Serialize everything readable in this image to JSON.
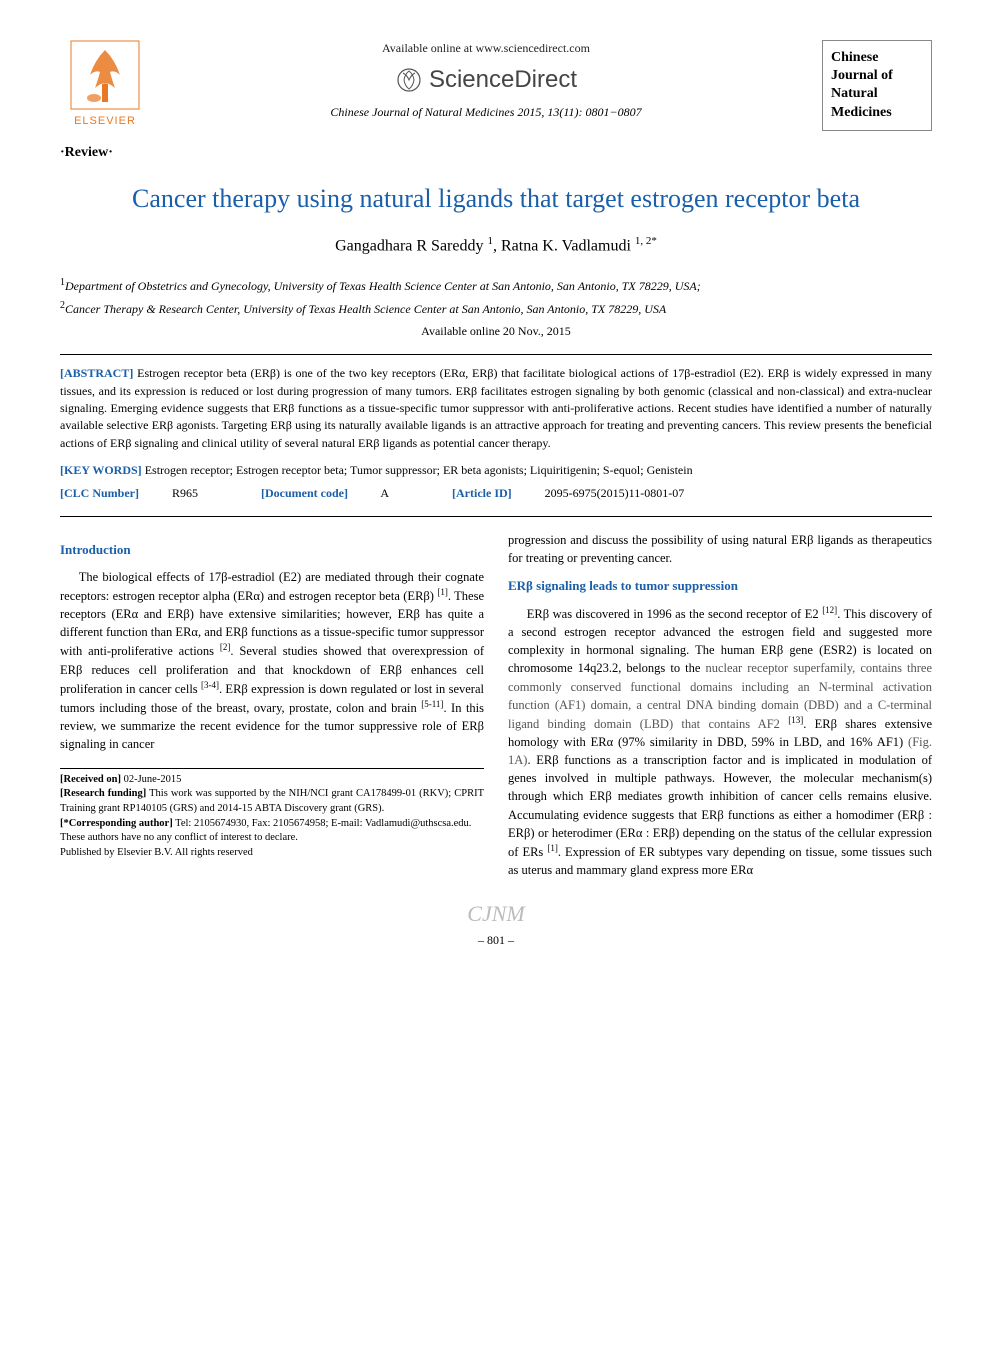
{
  "header": {
    "publisher_name": "ELSEVIER",
    "available_text": "Available online at www.sciencedirect.com",
    "sciencedirect_text": "ScienceDirect",
    "citation": "Chinese Journal of Natural Medicines 2015, 13(11): 0801−0807",
    "journal_box_lines": [
      "Chinese",
      "Journal of",
      "Natural",
      "Medicines"
    ]
  },
  "review_tag": "·Review·",
  "title": "Cancer therapy using natural ligands that target estrogen receptor beta",
  "authors_html": "Gangadhara R Sareddy <sup>1</sup>, Ratna K. Vadlamudi <sup>1, 2*</sup>",
  "affiliations": [
    "<sup>1</sup>Department of Obstetrics and Gynecology, University of Texas Health Science Center at San Antonio, San Antonio, TX 78229, USA;",
    "<sup>2</sup>Cancer Therapy & Research Center, University of Texas Health Science Center at San Antonio, San Antonio, TX 78229, USA"
  ],
  "available_date": "Available online 20 Nov., 2015",
  "abstract": {
    "label": "[ABSTRACT]",
    "text": "Estrogen receptor beta (ERβ) is one of the two key receptors (ERα, ERβ) that facilitate biological actions of 17β-estradiol (E2). ERβ is widely expressed in many tissues, and its expression is reduced or lost during progression of many tumors. ERβ facilitates estrogen signaling by both genomic (classical and non-classical) and extra-nuclear signaling. Emerging evidence suggests that ERβ functions as a tissue-specific tumor suppressor with anti-proliferative actions. Recent studies have identified a number of naturally available selective ERβ agonists. Targeting ERβ using its naturally available ligands is an attractive approach for treating and preventing cancers. This review presents the beneficial actions of ERβ signaling and clinical utility of several natural ERβ ligands as potential cancer therapy."
  },
  "keywords": {
    "label": "[KEY WORDS]",
    "text": "Estrogen receptor; Estrogen receptor beta; Tumor suppressor; ER beta agonists; Liquiritigenin; S-equol; Genistein"
  },
  "meta": {
    "clc_label": "[CLC Number]",
    "clc_value": "R965",
    "doc_label": "[Document code]",
    "doc_value": "A",
    "aid_label": "[Article ID]",
    "aid_value": "2095-6975(2015)11-0801-07"
  },
  "sections": {
    "intro_head": "Introduction",
    "intro_text": "The biological effects of 17β-estradiol (E2) are mediated through their cognate receptors: estrogen receptor alpha (ERα) and estrogen receptor beta (ERβ) <sup>[1]</sup>. These receptors (ERα and ERβ) have extensive similarities; however, ERβ has quite a different function than ERα, and ERβ functions as a tissue-specific tumor suppressor with anti-proliferative actions <sup>[2]</sup>. Several studies showed that overexpression of ERβ reduces cell proliferation and that knockdown of ERβ enhances cell proliferation in cancer cells <sup>[3-4]</sup>. ERβ expression is down regulated or lost in several tumors including those of the breast, ovary, prostate, colon and brain <sup>[5-11]</sup>. In this review, we summarize the recent evidence for the tumor suppressive role of ERβ signaling in cancer",
    "col2_lead": "progression and discuss the possibility of using natural ERβ ligands as therapeutics for treating or preventing cancer.",
    "erb_head": "ERβ signaling leads to tumor suppression",
    "erb_text": "ERβ was discovered in 1996 as the second receptor of E2 <sup>[12]</sup>. This discovery of a second estrogen receptor advanced the estrogen field and suggested more complexity in hormonal signaling. The human ERβ gene (ESR2) is located on chromosome 14q23.2, belongs to the <span class='fig-ref'>nuclear receptor superfamily, contains three commonly conserved functional domains including an N-terminal activation function (AF1) domain, a central DNA binding domain (DBD) and a C-terminal ligand binding domain (LBD) that contains AF2</span> <sup>[13]</sup>. ERβ shares extensive homology with ERα (97% similarity in DBD, 59% in LBD, and 16% AF1) <span class='fig-ref'>(Fig. 1A)</span>. ERβ functions as a transcription factor and is implicated in modulation of genes involved in multiple pathways. However, the molecular mechanism(s) through which ERβ mediates growth inhibition of cancer cells remains elusive. Accumulating evidence suggests that ERβ functions as either a homodimer (ERβ : ERβ) or heterodimer (ERα : ERβ) depending on the status of the cellular expression of ERs <sup>[1]</sup>. Expression of ER subtypes vary depending on tissue, some tissues such as uterus and mammary gland express more ERα"
  },
  "footnotes": {
    "received_label": "[Received on]",
    "received_value": "02-June-2015",
    "funding_label": "[Research funding]",
    "funding_text": "This work was supported by the NIH/NCI grant CA178499-01 (RKV); CPRIT Training grant RP140105 (GRS) and 2014-15 ABTA Discovery grant (GRS).",
    "corr_label": "[*Corresponding author]",
    "corr_text": "Tel: 2105674930, Fax: 2105674958; E-mail: Vadlamudi@uthscsa.edu.",
    "conflict": "These authors have no any conflict of interest to declare.",
    "copyright": "Published by Elsevier B.V. All rights reserved"
  },
  "footer": {
    "watermark": "CJNM",
    "page_num": "– 801 –"
  },
  "colors": {
    "heading_blue": "#1a5faa",
    "elsevier_orange": "#e97822",
    "text_black": "#000000",
    "background": "#ffffff",
    "fig_gray": "#555555"
  }
}
